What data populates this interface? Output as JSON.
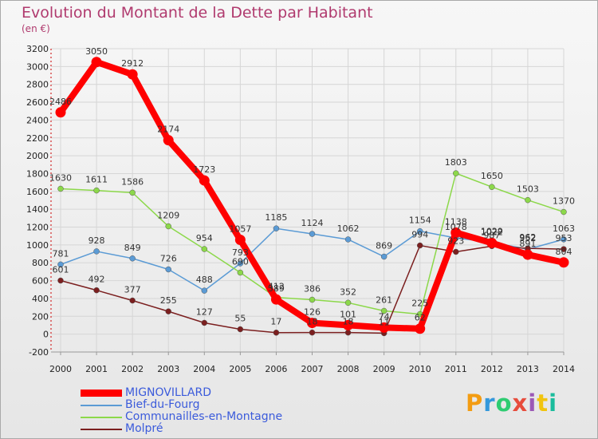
{
  "header": {
    "title": "Evolution du Montant de la Dette par Habitant",
    "subtitle": "(en €)"
  },
  "brand": {
    "letters": [
      "P",
      "r",
      "o",
      "x",
      "i",
      "t",
      "i"
    ],
    "colors": [
      "#f39c12",
      "#3498db",
      "#2ecc71",
      "#e74c3c",
      "#9b59b6",
      "#f1c40f",
      "#1abc9c"
    ]
  },
  "chart_data": {
    "type": "line",
    "title": "Evolution du Montant de la Dette par Habitant",
    "subtitle": "(en €)",
    "x": [
      "2000",
      "2001",
      "2002",
      "2003",
      "2004",
      "2005",
      "2006",
      "2007",
      "2008",
      "2009",
      "2010",
      "2011",
      "2012",
      "2013",
      "2014"
    ],
    "ylim": [
      -200,
      3200
    ],
    "yticks": [
      -200,
      0,
      200,
      400,
      600,
      800,
      1000,
      1200,
      1400,
      1600,
      1800,
      2000,
      2200,
      2400,
      2600,
      2800,
      3000,
      3200
    ],
    "grid": true,
    "legend_position": "bottom-left",
    "series": [
      {
        "name": "MIGNOVILLARD",
        "color": "#ff0000",
        "thick": true,
        "values": [
          2486,
          3050,
          2912,
          2174,
          1723,
          1057,
          389,
          126,
          101,
          74,
          62,
          1138,
          1022,
          891,
          804
        ]
      },
      {
        "name": "Bief-du-Fourg",
        "color": "#5b9bd5",
        "thick": false,
        "values": [
          781,
          928,
          849,
          726,
          488,
          793,
          1185,
          1124,
          1062,
          869,
          1154,
          1078,
          1029,
          952,
          1063
        ]
      },
      {
        "name": "Communailles-en-Montagne",
        "color": "#8cd84a",
        "thick": false,
        "values": [
          1630,
          1611,
          1586,
          1209,
          954,
          690,
          412,
          386,
          352,
          261,
          225,
          1803,
          1650,
          1503,
          1370
        ]
      },
      {
        "name": "Molpré",
        "color": "#7b1f1f",
        "thick": false,
        "values": [
          601,
          492,
          377,
          255,
          127,
          55,
          17,
          18,
          18,
          11,
          994,
          923,
          987,
          962,
          953
        ]
      }
    ]
  }
}
